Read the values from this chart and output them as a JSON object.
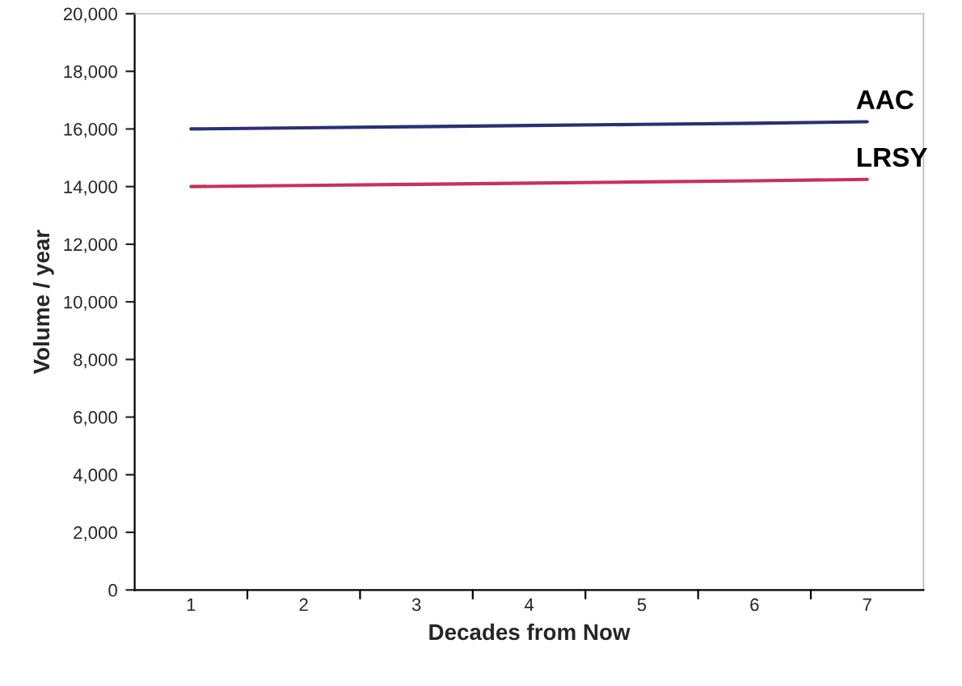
{
  "chart_data": {
    "type": "line",
    "xlabel": "Decades from Now",
    "ylabel": "Volume / year",
    "categories": [
      "1",
      "2",
      "3",
      "4",
      "5",
      "6",
      "7"
    ],
    "series": [
      {
        "name": "AAC",
        "color": "#2b3070",
        "values": [
          16000,
          16040,
          16080,
          16120,
          16160,
          16200,
          16250
        ]
      },
      {
        "name": "LRSY",
        "color": "#c8315a",
        "values": [
          14000,
          14040,
          14080,
          14120,
          14160,
          14200,
          14250
        ]
      }
    ],
    "ylim": [
      0,
      20000
    ],
    "yticks": [
      {
        "value": 0,
        "label": "0"
      },
      {
        "value": 2000,
        "label": "2,000"
      },
      {
        "value": 4000,
        "label": "4,000"
      },
      {
        "value": 6000,
        "label": "6,000"
      },
      {
        "value": 8000,
        "label": "8,000"
      },
      {
        "value": 10000,
        "label": "10,000"
      },
      {
        "value": 12000,
        "label": "12,000"
      },
      {
        "value": 14000,
        "label": "14,000"
      },
      {
        "value": 16000,
        "label": "16,000"
      },
      {
        "value": 18000,
        "label": "18,000"
      },
      {
        "value": 20000,
        "label": "20,000"
      }
    ],
    "grid": false,
    "legend": false,
    "marker": "none",
    "line_style": "solid"
  }
}
